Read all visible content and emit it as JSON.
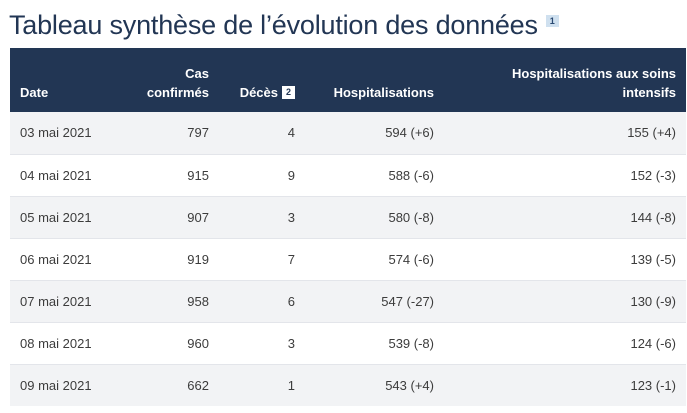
{
  "title": "Tableau synthèse de l’évolution des données",
  "title_note": "1",
  "table": {
    "headers": {
      "date": "Date",
      "cas_line1": "Cas",
      "cas_line2": "confirmés",
      "deces": "Décès",
      "deces_note": "2",
      "hospitalisations": "Hospitalisations",
      "soins_line1": "Hospitalisations aux soins",
      "soins_line2": "intensifs"
    },
    "rows": [
      {
        "date": "03 mai 2021",
        "cas": "797",
        "deces": "4",
        "hosp": "594 (+6)",
        "soins": "155 (+4)"
      },
      {
        "date": "04 mai 2021",
        "cas": "915",
        "deces": "9",
        "hosp": "588 (-6)",
        "soins": "152 (-3)"
      },
      {
        "date": "05 mai 2021",
        "cas": "907",
        "deces": "3",
        "hosp": "580 (-8)",
        "soins": "144 (-8)"
      },
      {
        "date": "06 mai 2021",
        "cas": "919",
        "deces": "7",
        "hosp": "574 (-6)",
        "soins": "139 (-5)"
      },
      {
        "date": "07 mai 2021",
        "cas": "958",
        "deces": "6",
        "hosp": "547 (-27)",
        "soins": "130 (-9)"
      },
      {
        "date": "08 mai 2021",
        "cas": "960",
        "deces": "3",
        "hosp": "539 (-8)",
        "soins": "124 (-6)"
      },
      {
        "date": "09 mai 2021",
        "cas": "662",
        "deces": "1",
        "hosp": "543 (+4)",
        "soins": "123 (-1)"
      }
    ]
  },
  "colors": {
    "header_bg": "#223654",
    "title_text": "#223654",
    "row_alt_bg": "#f2f3f5",
    "note_badge_bg": "#cfe0ef"
  }
}
